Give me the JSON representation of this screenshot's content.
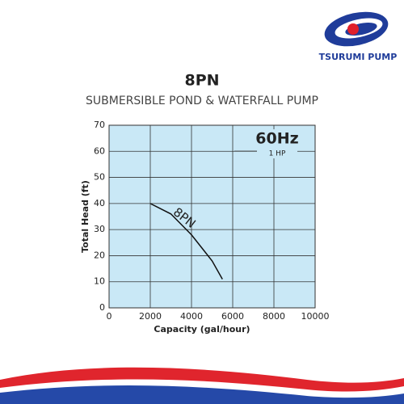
{
  "logo": "TSURUMI PUMP",
  "chart_data": {
    "type": "line",
    "title": "8PN",
    "subtitle": "SUBMERSIBLE POND & WATERFALL PUMP",
    "annotations": [
      "60Hz",
      "1 HP"
    ],
    "x_label": "Capacity (gal/hour)",
    "y_label": "Total Head (ft)",
    "x": [
      2000,
      3000,
      4000,
      5000,
      5500
    ],
    "series": [
      {
        "name": "8PN",
        "color": "#111111",
        "values": [
          40,
          36,
          28,
          18,
          11
        ]
      }
    ],
    "xlim": [
      0,
      10000
    ],
    "ylim": [
      0,
      70
    ],
    "xticks": [
      0,
      2000,
      4000,
      6000,
      8000,
      10000
    ],
    "yticks": [
      0,
      10,
      20,
      30,
      40,
      50,
      60,
      70
    ],
    "grid": true,
    "plot_background": "#c9e8f6"
  }
}
